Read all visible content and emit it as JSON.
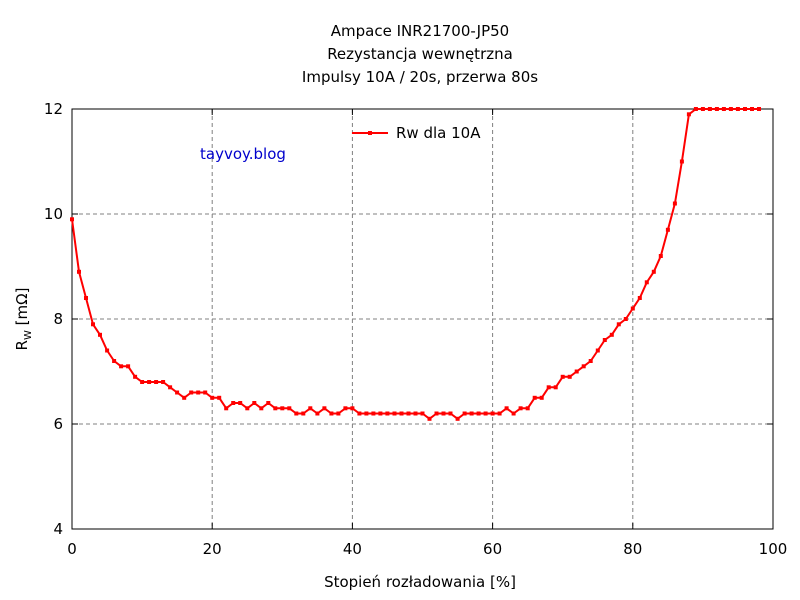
{
  "chart_data": {
    "type": "line",
    "title_lines": [
      "Ampace INR21700-JP50",
      "Rezystancja wewnętrzna",
      "Impulsy 10A / 20s, przerwa 80s"
    ],
    "xlabel": "Stopień rozładowania [%]",
    "ylabel_main": "R",
    "ylabel_sub": "W",
    "ylabel_unit": " [mΩ]",
    "xlim": [
      0,
      100
    ],
    "ylim": [
      4,
      12
    ],
    "xticks": [
      0,
      20,
      40,
      60,
      80,
      100
    ],
    "yticks": [
      4,
      6,
      8,
      10,
      12
    ],
    "grid": true,
    "legend_position": "top-center",
    "watermark": "tayvoy.blog",
    "series": [
      {
        "name": "Rw dla 10A",
        "color": "#ff0000",
        "x": [
          0,
          1,
          2,
          3,
          4,
          5,
          6,
          7,
          8,
          9,
          10,
          11,
          12,
          13,
          14,
          15,
          16,
          17,
          18,
          19,
          20,
          21,
          22,
          23,
          24,
          25,
          26,
          27,
          28,
          29,
          30,
          31,
          32,
          33,
          34,
          35,
          36,
          37,
          38,
          39,
          40,
          41,
          42,
          43,
          44,
          45,
          46,
          47,
          48,
          49,
          50,
          51,
          52,
          53,
          54,
          55,
          56,
          57,
          58,
          59,
          60,
          61,
          62,
          63,
          64,
          65,
          66,
          67,
          68,
          69,
          70,
          71,
          72,
          73,
          74,
          75,
          76,
          77,
          78,
          79,
          80,
          81,
          82,
          83,
          84,
          85,
          86,
          87,
          88,
          89,
          90,
          91,
          92,
          93,
          94,
          95,
          96,
          97,
          98
        ],
        "y": [
          9.9,
          8.9,
          8.4,
          7.9,
          7.7,
          7.4,
          7.2,
          7.1,
          7.1,
          6.9,
          6.8,
          6.8,
          6.8,
          6.8,
          6.7,
          6.6,
          6.5,
          6.6,
          6.6,
          6.6,
          6.5,
          6.5,
          6.3,
          6.4,
          6.4,
          6.3,
          6.4,
          6.3,
          6.4,
          6.3,
          6.3,
          6.3,
          6.2,
          6.2,
          6.3,
          6.2,
          6.3,
          6.2,
          6.2,
          6.3,
          6.3,
          6.2,
          6.2,
          6.2,
          6.2,
          6.2,
          6.2,
          6.2,
          6.2,
          6.2,
          6.2,
          6.1,
          6.2,
          6.2,
          6.2,
          6.1,
          6.2,
          6.2,
          6.2,
          6.2,
          6.2,
          6.2,
          6.3,
          6.2,
          6.3,
          6.3,
          6.5,
          6.5,
          6.7,
          6.7,
          6.9,
          6.9,
          7.0,
          7.1,
          7.2,
          7.4,
          7.6,
          7.7,
          7.9,
          8.0,
          8.2,
          8.4,
          8.7,
          8.9,
          9.2,
          9.7,
          10.2,
          11.0,
          11.9,
          12.0,
          12.0,
          12.0,
          12.0,
          12.0,
          12.0,
          12.0,
          12.0,
          12.0,
          12.0
        ]
      }
    ]
  }
}
